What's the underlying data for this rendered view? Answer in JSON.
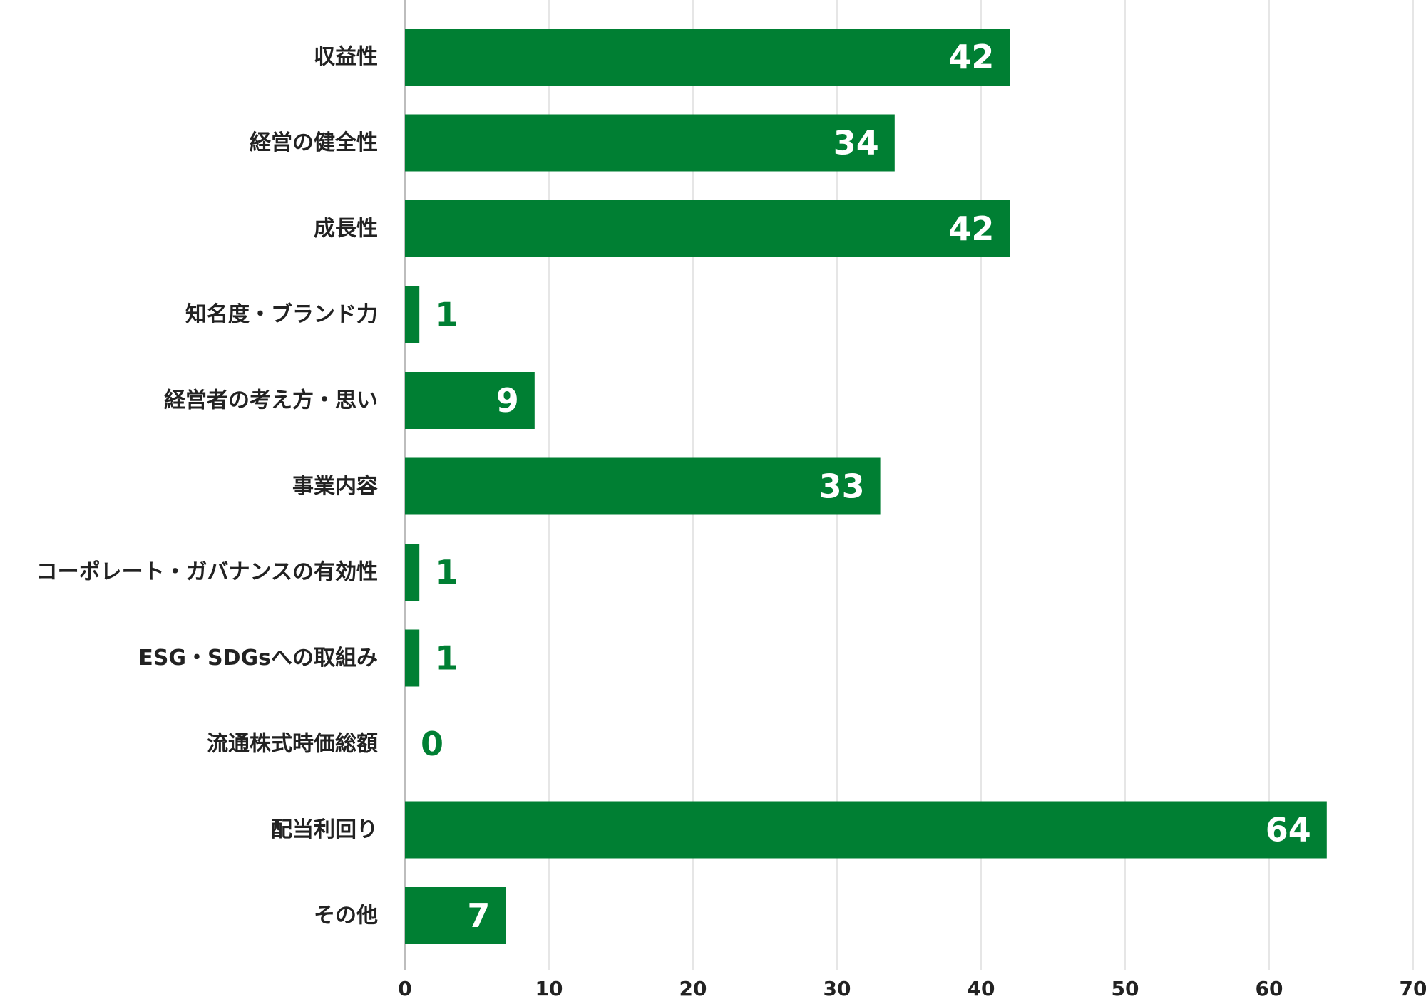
{
  "chart_data": {
    "type": "bar",
    "orientation": "horizontal",
    "categories": [
      "収益性",
      "経営の健全性",
      "成長性",
      "知名度・ブランド力",
      "経営者の考え方・思い",
      "事業内容",
      "コーポレート・ガバナンスの有効性",
      "ESG・SDGsへの取組み",
      "流通株式時価総額",
      "配当利回り",
      "その他"
    ],
    "values": [
      42,
      34,
      42,
      1,
      9,
      33,
      1,
      1,
      0,
      64,
      7
    ],
    "data_labels": [
      "42",
      "34",
      "42",
      "1",
      "9",
      "33",
      "1",
      "1",
      "0",
      "64",
      "7"
    ],
    "xlim": [
      0,
      70
    ],
    "x_ticks": [
      0,
      10,
      20,
      30,
      40,
      50,
      60,
      70
    ],
    "x_tick_labels": [
      "0",
      "10",
      "20",
      "30",
      "40",
      "50",
      "60",
      "70"
    ],
    "grid": true,
    "legend": "none",
    "title": "",
    "xlabel": "",
    "ylabel": ""
  },
  "colors": {
    "bar": "#007f33",
    "label_inside": "#ffffff",
    "label_outside": "#007f33",
    "grid": "#e6e6e6",
    "axis": "#bdbdbd",
    "text": "#222222"
  }
}
